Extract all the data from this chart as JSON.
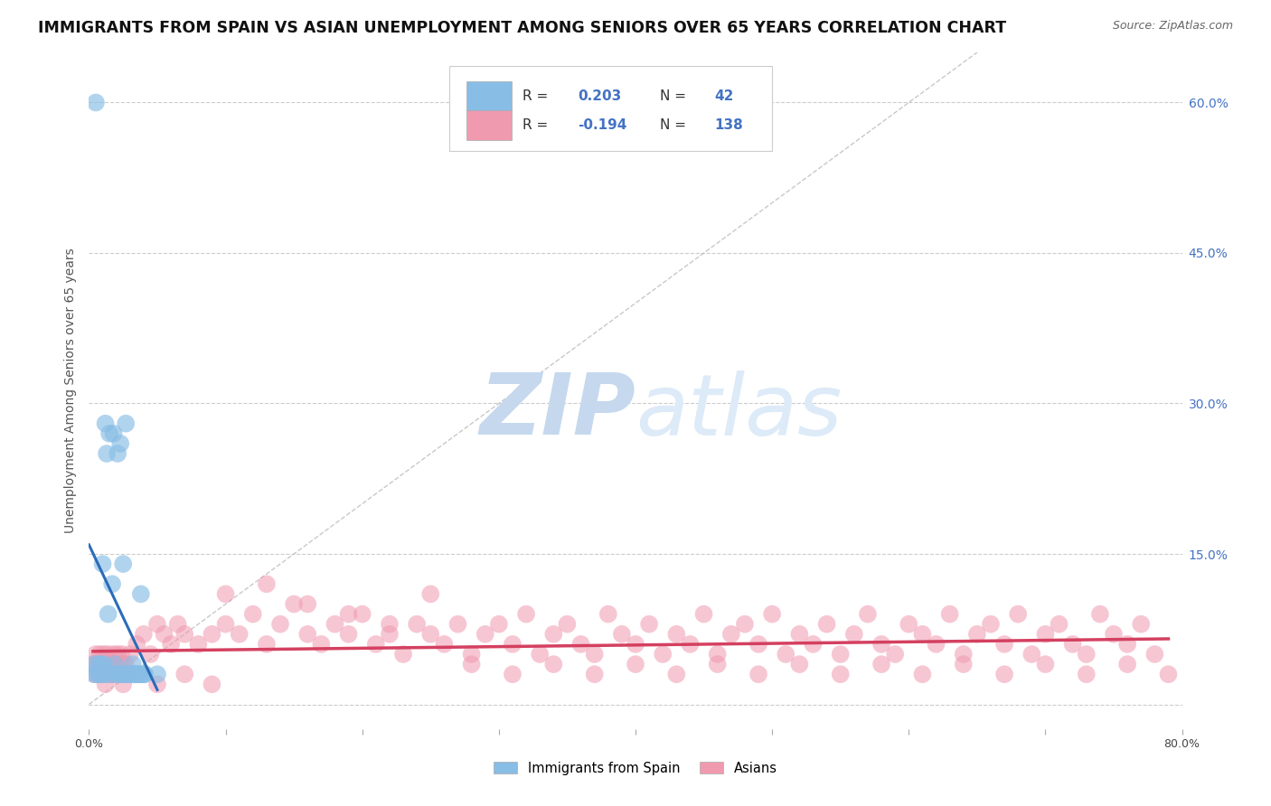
{
  "title": "IMMIGRANTS FROM SPAIN VS ASIAN UNEMPLOYMENT AMONG SENIORS OVER 65 YEARS CORRELATION CHART",
  "source": "Source: ZipAtlas.com",
  "ylabel": "Unemployment Among Seniors over 65 years",
  "xlim": [
    0.0,
    0.8
  ],
  "ylim": [
    -0.025,
    0.65
  ],
  "ytick_positions": [
    0.0,
    0.15,
    0.3,
    0.45,
    0.6
  ],
  "ytick_labels_right": [
    "",
    "15.0%",
    "30.0%",
    "45.0%",
    "60.0%"
  ],
  "blue_color": "#88bde6",
  "pink_color": "#f09ab0",
  "blue_line_color": "#2b6cb8",
  "pink_line_color": "#d44060",
  "ref_line_color": "#bbbbbb",
  "watermark_color": "#dce8f5",
  "background_color": "#ffffff",
  "grid_color": "#cccccc",
  "title_fontsize": 12.5,
  "axis_label_fontsize": 10,
  "tick_fontsize": 9,
  "blue_R": 0.203,
  "blue_N": 42,
  "pink_R": -0.194,
  "pink_N": 138,
  "blue_scatter_x": [
    0.004,
    0.004,
    0.005,
    0.006,
    0.007,
    0.008,
    0.009,
    0.01,
    0.01,
    0.011,
    0.012,
    0.013,
    0.014,
    0.015,
    0.016,
    0.017,
    0.018,
    0.019,
    0.02,
    0.021,
    0.022,
    0.023,
    0.024,
    0.025,
    0.026,
    0.027,
    0.028,
    0.029,
    0.03,
    0.031,
    0.032,
    0.033,
    0.034,
    0.035,
    0.036,
    0.037,
    0.038,
    0.039,
    0.04,
    0.041,
    0.012,
    0.05
  ],
  "blue_scatter_y": [
    0.03,
    0.04,
    0.6,
    0.03,
    0.04,
    0.03,
    0.04,
    0.03,
    0.14,
    0.04,
    0.03,
    0.25,
    0.09,
    0.27,
    0.03,
    0.12,
    0.27,
    0.04,
    0.03,
    0.25,
    0.03,
    0.26,
    0.03,
    0.14,
    0.03,
    0.28,
    0.03,
    0.03,
    0.03,
    0.03,
    0.04,
    0.03,
    0.03,
    0.03,
    0.03,
    0.03,
    0.11,
    0.03,
    0.03,
    0.03,
    0.28,
    0.03
  ],
  "pink_scatter_x": [
    0.003,
    0.004,
    0.005,
    0.006,
    0.007,
    0.008,
    0.009,
    0.01,
    0.011,
    0.012,
    0.013,
    0.014,
    0.015,
    0.016,
    0.017,
    0.018,
    0.019,
    0.02,
    0.021,
    0.022,
    0.023,
    0.024,
    0.025,
    0.026,
    0.027,
    0.028,
    0.03,
    0.035,
    0.04,
    0.045,
    0.05,
    0.055,
    0.06,
    0.065,
    0.07,
    0.08,
    0.09,
    0.1,
    0.11,
    0.12,
    0.13,
    0.14,
    0.15,
    0.16,
    0.17,
    0.18,
    0.19,
    0.2,
    0.21,
    0.22,
    0.23,
    0.24,
    0.25,
    0.26,
    0.27,
    0.28,
    0.29,
    0.3,
    0.31,
    0.32,
    0.33,
    0.34,
    0.35,
    0.36,
    0.37,
    0.38,
    0.39,
    0.4,
    0.41,
    0.42,
    0.43,
    0.44,
    0.45,
    0.46,
    0.47,
    0.48,
    0.49,
    0.5,
    0.51,
    0.52,
    0.53,
    0.54,
    0.55,
    0.56,
    0.57,
    0.58,
    0.59,
    0.6,
    0.61,
    0.62,
    0.63,
    0.64,
    0.65,
    0.66,
    0.67,
    0.68,
    0.69,
    0.7,
    0.71,
    0.72,
    0.73,
    0.74,
    0.75,
    0.76,
    0.77,
    0.78,
    0.008,
    0.012,
    0.018,
    0.025,
    0.035,
    0.05,
    0.07,
    0.09,
    0.1,
    0.13,
    0.16,
    0.19,
    0.22,
    0.25,
    0.28,
    0.31,
    0.34,
    0.37,
    0.4,
    0.43,
    0.46,
    0.49,
    0.52,
    0.55,
    0.58,
    0.61,
    0.64,
    0.67,
    0.7,
    0.73,
    0.76,
    0.79
  ],
  "pink_scatter_y": [
    0.04,
    0.03,
    0.05,
    0.04,
    0.03,
    0.05,
    0.04,
    0.03,
    0.05,
    0.04,
    0.03,
    0.05,
    0.03,
    0.04,
    0.03,
    0.05,
    0.04,
    0.03,
    0.05,
    0.04,
    0.03,
    0.05,
    0.04,
    0.03,
    0.04,
    0.03,
    0.05,
    0.06,
    0.07,
    0.05,
    0.08,
    0.07,
    0.06,
    0.08,
    0.07,
    0.06,
    0.07,
    0.08,
    0.07,
    0.09,
    0.06,
    0.08,
    0.1,
    0.07,
    0.06,
    0.08,
    0.07,
    0.09,
    0.06,
    0.07,
    0.05,
    0.08,
    0.07,
    0.06,
    0.08,
    0.05,
    0.07,
    0.08,
    0.06,
    0.09,
    0.05,
    0.07,
    0.08,
    0.06,
    0.05,
    0.09,
    0.07,
    0.06,
    0.08,
    0.05,
    0.07,
    0.06,
    0.09,
    0.05,
    0.07,
    0.08,
    0.06,
    0.09,
    0.05,
    0.07,
    0.06,
    0.08,
    0.05,
    0.07,
    0.09,
    0.06,
    0.05,
    0.08,
    0.07,
    0.06,
    0.09,
    0.05,
    0.07,
    0.08,
    0.06,
    0.09,
    0.05,
    0.07,
    0.08,
    0.06,
    0.05,
    0.09,
    0.07,
    0.06,
    0.08,
    0.05,
    0.03,
    0.02,
    0.03,
    0.02,
    0.03,
    0.02,
    0.03,
    0.02,
    0.11,
    0.12,
    0.1,
    0.09,
    0.08,
    0.11,
    0.04,
    0.03,
    0.04,
    0.03,
    0.04,
    0.03,
    0.04,
    0.03,
    0.04,
    0.03,
    0.04,
    0.03,
    0.04,
    0.03,
    0.04,
    0.03,
    0.04,
    0.03
  ]
}
